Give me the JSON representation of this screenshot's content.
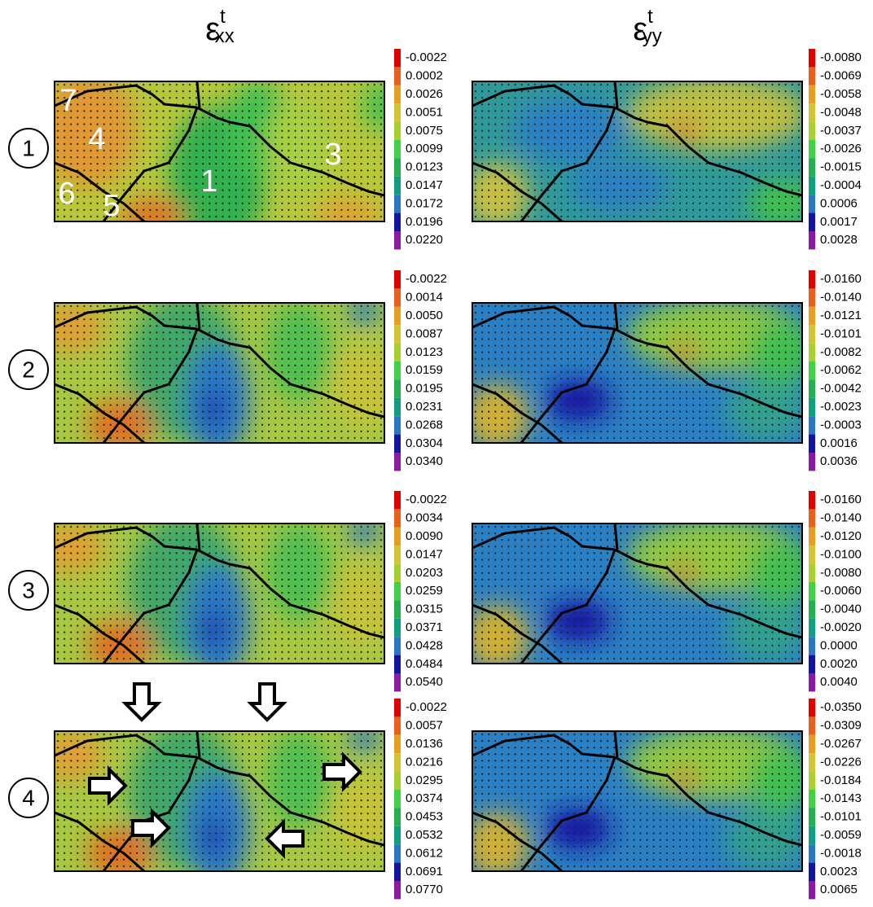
{
  "headers": [
    {
      "symbol": "ε",
      "sup": "t",
      "sub": "xx"
    },
    {
      "symbol": "ε",
      "sup": "t",
      "sub": "yy"
    }
  ],
  "rows": [
    {
      "label": "1",
      "colorbars": [
        [
          "-0.0022",
          "0.0002",
          "0.0026",
          "0.0051",
          "0.0075",
          "0.0099",
          "0.0123",
          "0.0147",
          "0.0172",
          "0.0196",
          "0.0220"
        ],
        [
          "-0.0080",
          "-0.0069",
          "-0.0058",
          "-0.0048",
          "-0.0037",
          "-0.0026",
          "-0.0015",
          "-0.0004",
          "0.0006",
          "0.0017",
          "0.0028"
        ]
      ]
    },
    {
      "label": "2",
      "colorbars": [
        [
          "-0.0022",
          "0.0014",
          "0.0050",
          "0.0087",
          "0.0123",
          "0.0159",
          "0.0195",
          "0.0231",
          "0.0268",
          "0.0304",
          "0.0340"
        ],
        [
          "-0.0160",
          "-0.0140",
          "-0.0121",
          "-0.0101",
          "-0.0082",
          "-0.0062",
          "-0.0042",
          "-0.0023",
          "-0.0003",
          "0.0016",
          "0.0036"
        ]
      ]
    },
    {
      "label": "3",
      "colorbars": [
        [
          "-0.0022",
          "0.0034",
          "0.0090",
          "0.0147",
          "0.0203",
          "0.0259",
          "0.0315",
          "0.0371",
          "0.0428",
          "0.0484",
          "0.0540"
        ],
        [
          "-0.0160",
          "-0.0140",
          "-0.0120",
          "-0.0100",
          "-0.0080",
          "-0.0060",
          "-0.0040",
          "-0.0020",
          "0.0000",
          "0.0020",
          "0.0040"
        ]
      ]
    },
    {
      "label": "4",
      "colorbars": [
        [
          "-0.0022",
          "0.0057",
          "0.0136",
          "0.0216",
          "0.0295",
          "0.0374",
          "0.0453",
          "0.0532",
          "0.0612",
          "0.0691",
          "0.0770"
        ],
        [
          "-0.0350",
          "-0.0309",
          "-0.0267",
          "-0.0226",
          "-0.0184",
          "-0.0143",
          "-0.0101",
          "-0.0059",
          "-0.0018",
          "0.0023",
          "0.0065"
        ]
      ]
    }
  ],
  "grain_labels": [
    "7",
    "4",
    "3",
    "1",
    "6",
    "5"
  ]
}
